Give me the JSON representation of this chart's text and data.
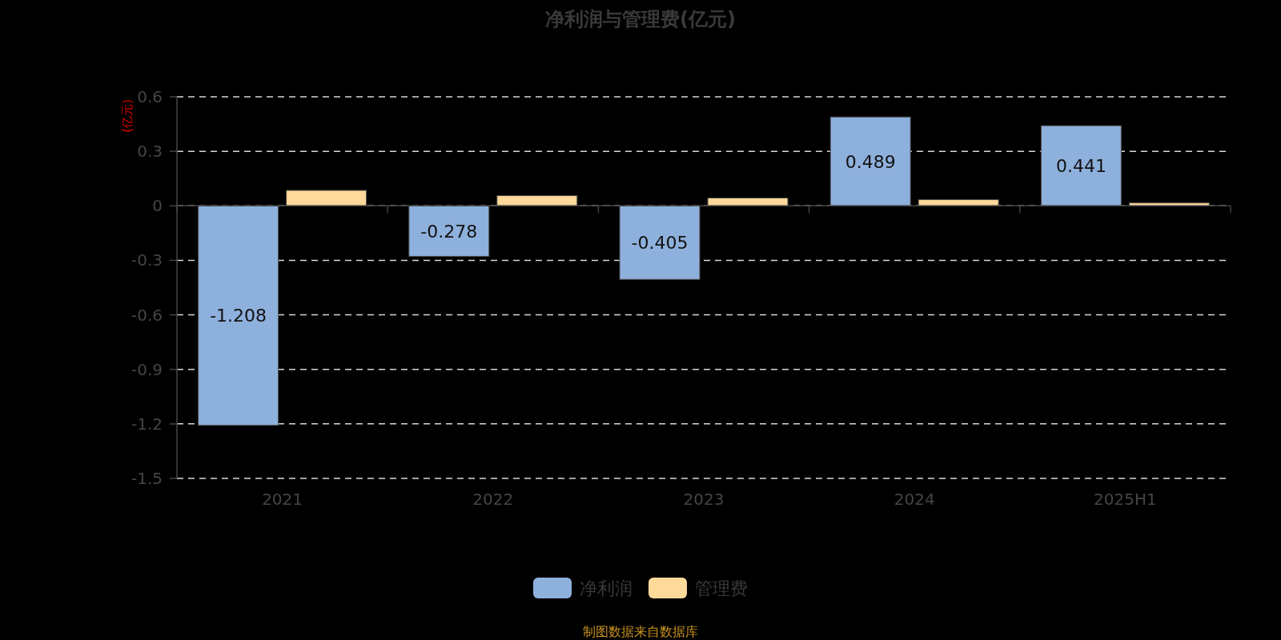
{
  "chart_data": {
    "type": "bar",
    "title": "净利润与管理费(亿元)",
    "ylabel": "(亿元)",
    "categories": [
      "2021",
      "2022",
      "2023",
      "2024",
      "2025H1"
    ],
    "series": [
      {
        "name": "净利润",
        "color": "#8eb0dc",
        "values": [
          -1.208,
          -0.278,
          -0.405,
          0.489,
          0.441
        ],
        "value_labels": [
          "-1.208",
          "-0.278",
          "-0.405",
          "0.489",
          "0.441"
        ]
      },
      {
        "name": "管理费",
        "color": "#ffd99a",
        "values": [
          0.085,
          0.056,
          0.043,
          0.034,
          0.016
        ]
      }
    ],
    "ylim": [
      -1.5,
      0.6
    ],
    "yticks": [
      -1.5,
      -1.2,
      -0.9,
      -0.6,
      -0.3,
      0,
      0.3,
      0.6
    ],
    "grid": "y",
    "legend": "bottom",
    "annotations": [
      "制图数据来自数据库"
    ]
  }
}
